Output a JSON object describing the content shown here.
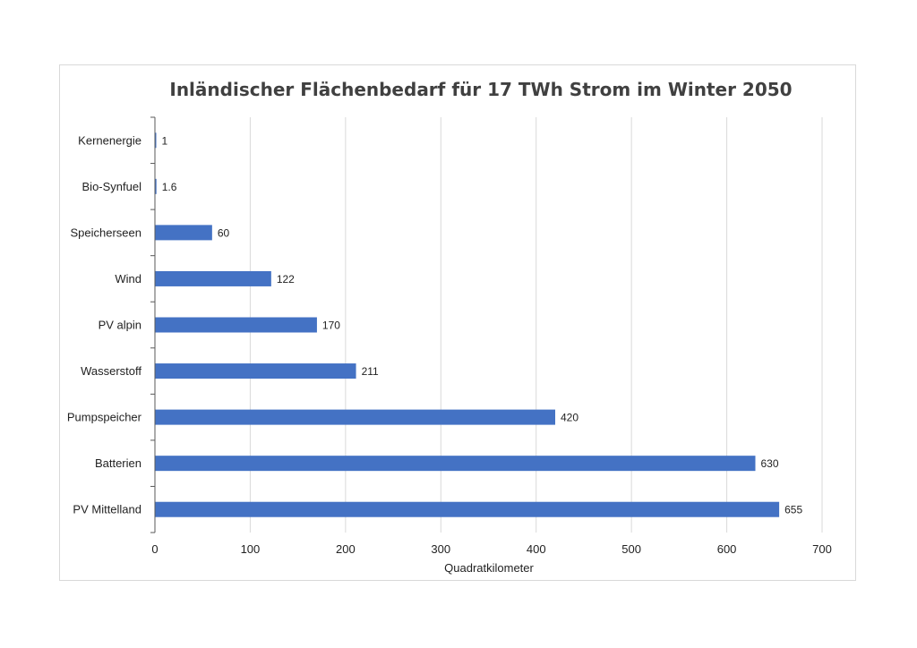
{
  "chart_data": {
    "type": "bar",
    "orientation": "horizontal",
    "title": "Inländischer Flächenbedarf  für 17 TWh Strom im Winter 2050",
    "xlabel": "Quadratkilometer",
    "ylabel": "",
    "categories": [
      "Kernenergie",
      "Bio-Synfuel",
      "Speicherseen",
      "Wind",
      "PV alpin",
      "Wasserstoff",
      "Pumpspeicher",
      "Batterien",
      "PV Mittelland"
    ],
    "values": [
      1,
      1.6,
      60,
      122,
      170,
      211,
      420,
      630,
      655
    ],
    "data_labels": [
      "1",
      "1.6",
      "60",
      "122",
      "170",
      "211",
      "420",
      "630",
      "655"
    ],
    "xlim": [
      0,
      700
    ],
    "xticks": [
      0,
      100,
      200,
      300,
      400,
      500,
      600,
      700
    ],
    "grid": "vertical",
    "legend": "none",
    "bar_color": "#4472C4",
    "grid_color": "#d9d9d9",
    "axis_color": "#595959"
  }
}
